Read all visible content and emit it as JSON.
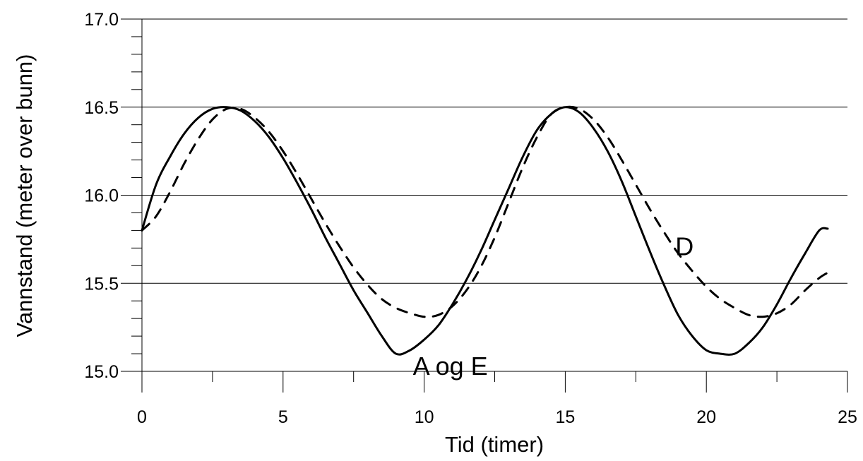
{
  "chart_data": {
    "type": "line",
    "title": "",
    "xlabel": "Tid (timer)",
    "ylabel": "Vannstand (meter over bunn)",
    "xlim": [
      0,
      25
    ],
    "ylim": [
      15.0,
      17.0
    ],
    "xticks": [
      0,
      5,
      10,
      15,
      20,
      25
    ],
    "xtick_labels": [
      "0",
      "5",
      "10",
      "15",
      "20",
      "25"
    ],
    "yticks": [
      15.0,
      15.5,
      16.0,
      16.5,
      17.0
    ],
    "ytick_labels": [
      "15.0",
      "15.5",
      "16.0",
      "16.5",
      "17.0"
    ],
    "grid": "horizontal",
    "legend": "none",
    "annotations": [
      {
        "text": "A og E",
        "x": 9.6,
        "y": 15.0,
        "series": "solid"
      },
      {
        "text": "D",
        "x": 18.9,
        "y": 15.68,
        "series": "dashed"
      }
    ],
    "series": [
      {
        "style": "solid",
        "color": "#000000",
        "x": [
          0,
          0.5,
          1,
          1.5,
          2,
          2.5,
          3,
          3.5,
          4,
          4.5,
          5,
          5.5,
          6,
          6.5,
          7,
          7.5,
          8,
          8.5,
          9,
          9.5,
          10,
          10.5,
          11,
          11.5,
          12,
          12.5,
          13,
          13.5,
          14,
          14.5,
          15,
          15.5,
          16,
          16.5,
          17,
          17.5,
          18,
          18.5,
          19,
          19.5,
          20,
          20.5,
          21,
          21.5,
          22,
          22.5,
          23,
          23.5,
          24,
          24.3
        ],
        "y": [
          15.8,
          16.06,
          16.22,
          16.35,
          16.44,
          16.49,
          16.5,
          16.48,
          16.42,
          16.33,
          16.21,
          16.07,
          15.92,
          15.76,
          15.61,
          15.46,
          15.33,
          15.2,
          15.1,
          15.12,
          15.18,
          15.26,
          15.38,
          15.52,
          15.68,
          15.86,
          16.04,
          16.22,
          16.37,
          16.46,
          16.5,
          16.47,
          16.38,
          16.25,
          16.08,
          15.88,
          15.68,
          15.49,
          15.32,
          15.2,
          15.12,
          15.1,
          15.1,
          15.16,
          15.25,
          15.38,
          15.53,
          15.67,
          15.8,
          15.81
        ]
      },
      {
        "style": "dashed",
        "color": "#000000",
        "x": [
          0,
          0.5,
          1,
          1.5,
          2,
          2.5,
          3,
          3.5,
          4,
          4.5,
          5,
          5.5,
          6,
          6.5,
          7,
          7.5,
          8,
          8.5,
          9,
          9.5,
          10,
          10.5,
          11,
          11.5,
          12,
          12.5,
          13,
          13.5,
          14,
          14.5,
          15,
          15.5,
          16,
          16.5,
          17,
          17.5,
          18,
          18.5,
          19,
          19.5,
          20,
          20.5,
          21,
          21.5,
          22,
          22.5,
          23,
          23.5,
          24,
          24.3
        ],
        "y": [
          15.8,
          15.88,
          16.02,
          16.18,
          16.32,
          16.43,
          16.49,
          16.49,
          16.44,
          16.36,
          16.25,
          16.12,
          15.98,
          15.84,
          15.71,
          15.59,
          15.49,
          15.41,
          15.36,
          15.33,
          15.31,
          15.32,
          15.37,
          15.46,
          15.59,
          15.76,
          15.96,
          16.16,
          16.33,
          16.46,
          16.5,
          16.49,
          16.43,
          16.33,
          16.2,
          16.06,
          15.92,
          15.79,
          15.67,
          15.57,
          15.48,
          15.41,
          15.36,
          15.32,
          15.31,
          15.33,
          15.38,
          15.46,
          15.53,
          15.56
        ]
      }
    ]
  }
}
